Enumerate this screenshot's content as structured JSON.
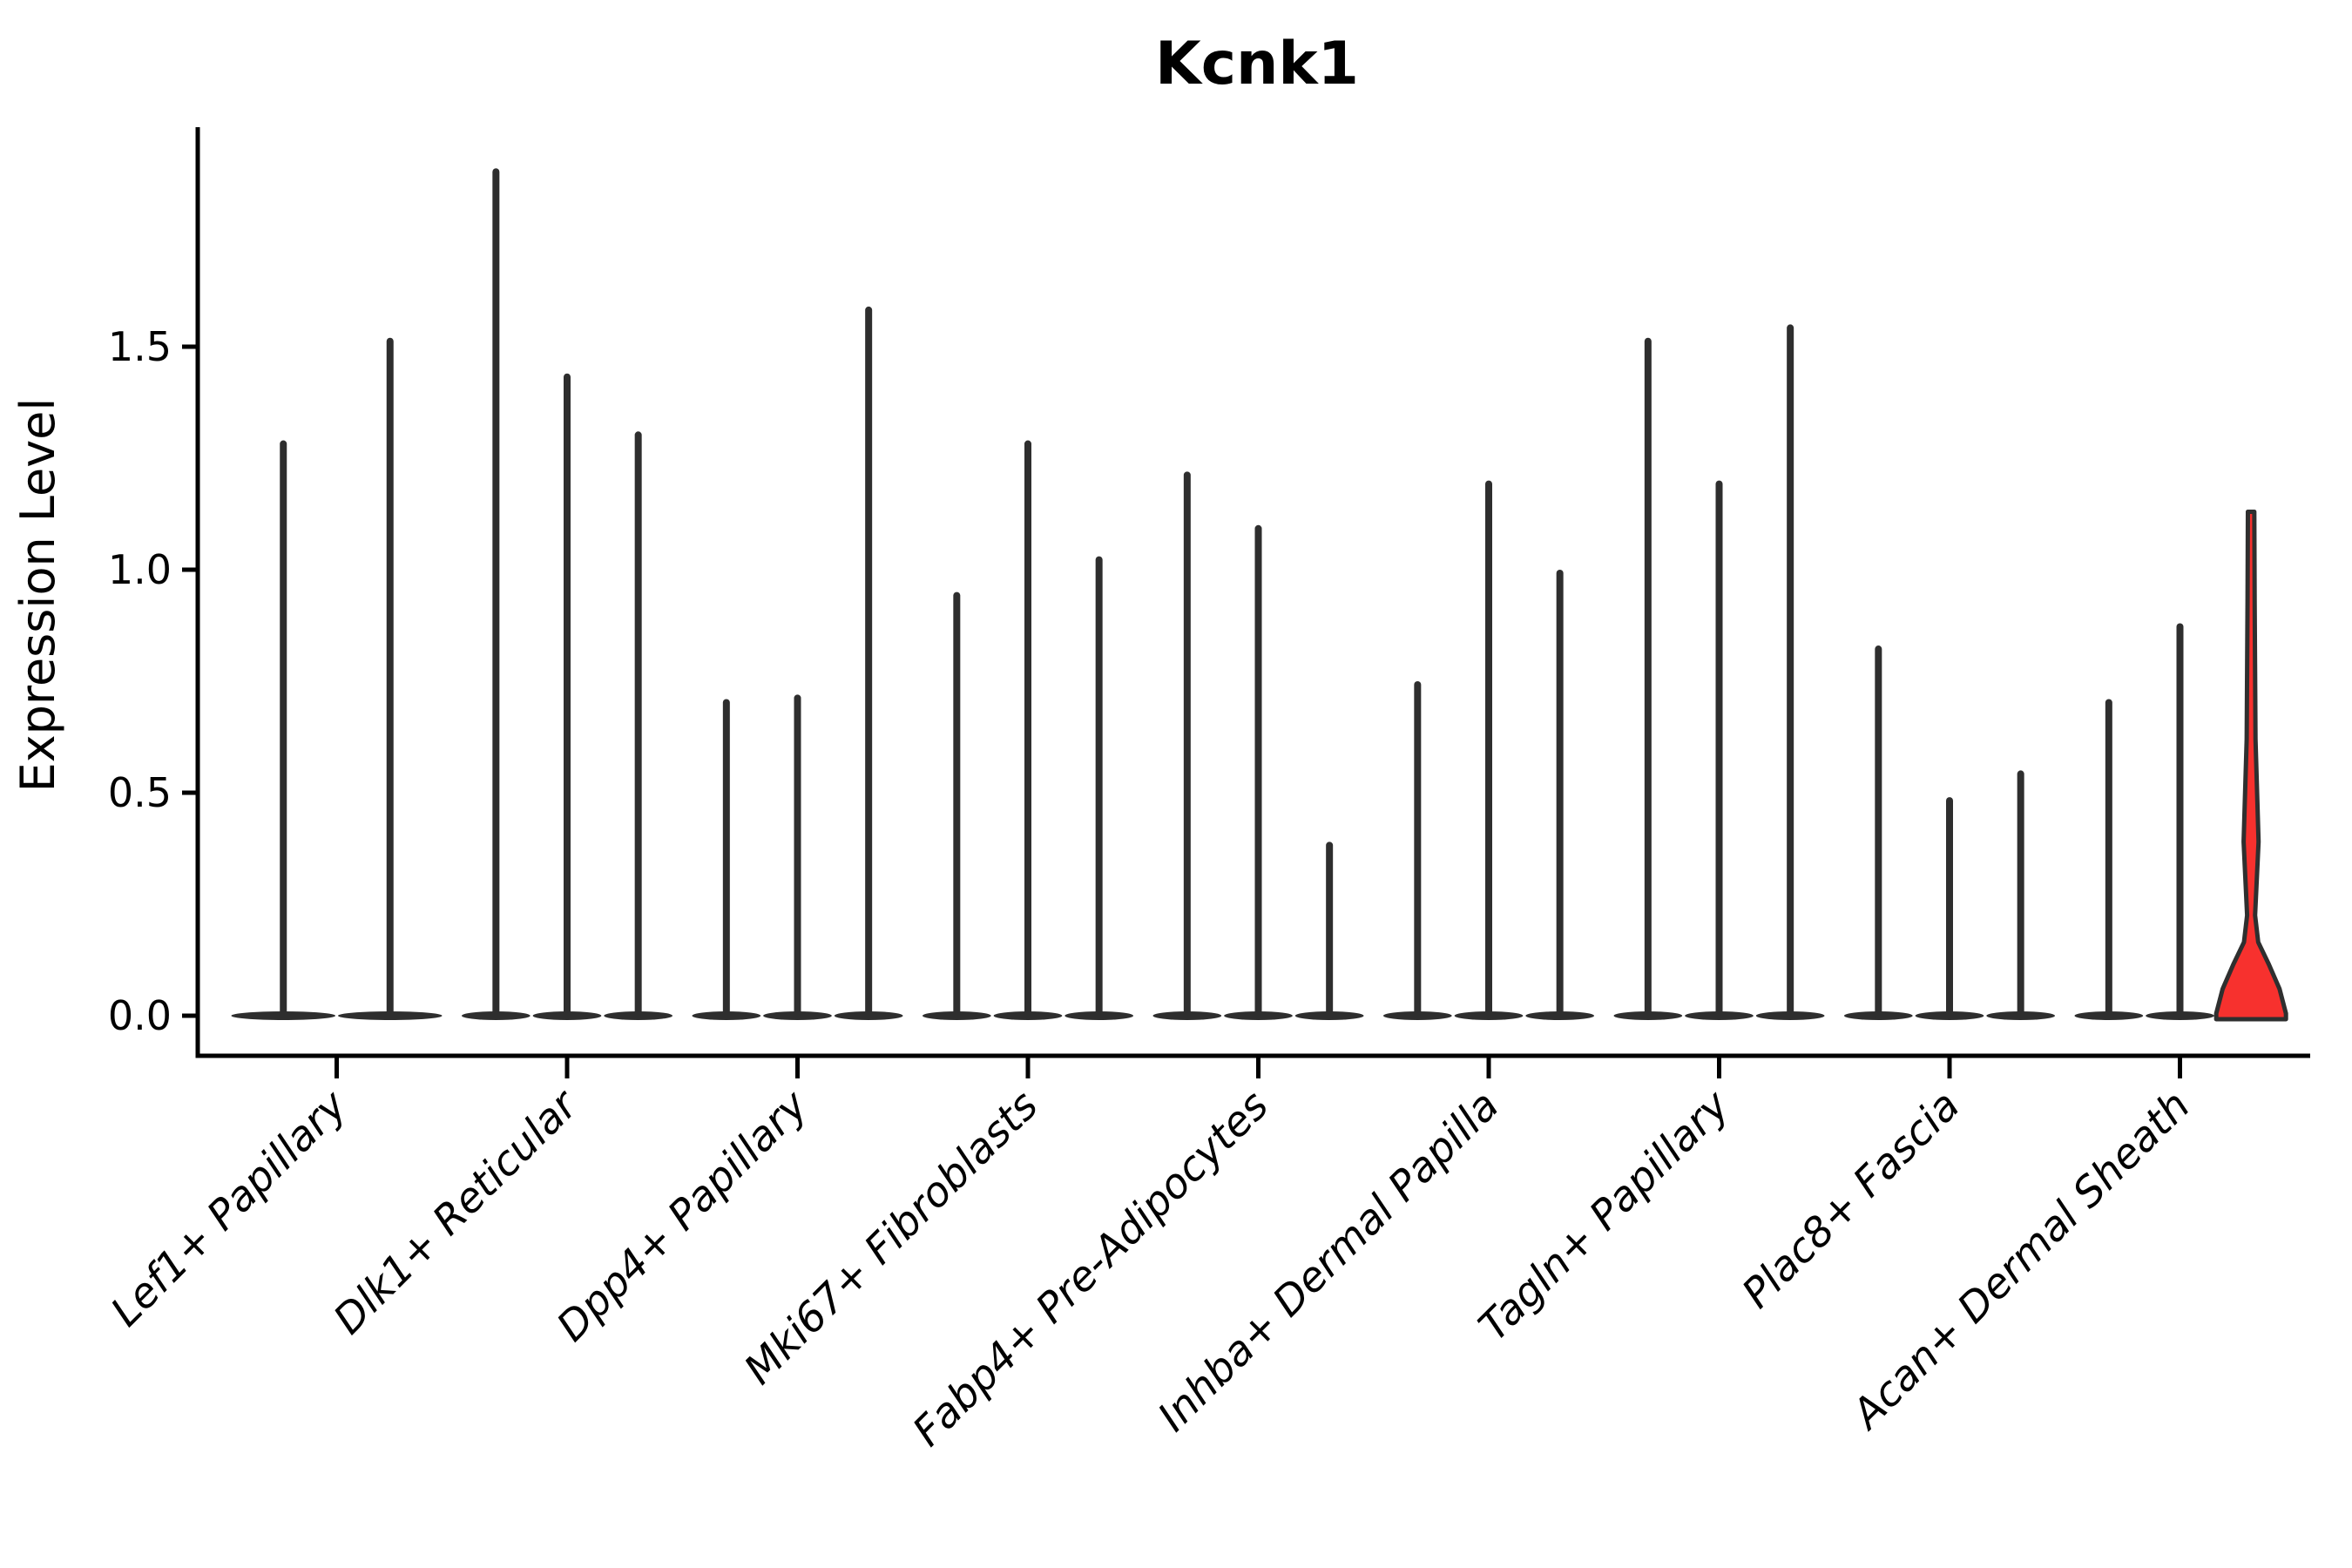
{
  "page": {
    "background": "#ffffff"
  },
  "title": {
    "text": "Kcnk1"
  },
  "chart_data": {
    "type": "violin",
    "title": "Kcnk1",
    "xlabel": "",
    "ylabel": "Expression Level",
    "ytick_labels": [
      "0.0",
      "0.5",
      "1.0",
      "1.5"
    ],
    "ytick_values": [
      0,
      0.5,
      1.0,
      1.5
    ],
    "ylim": [
      0,
      2.08
    ],
    "grid": false,
    "legend": "none",
    "categories": [
      "Lef1+ Papillary",
      "Dlk1+ Reticular",
      "Dpp4+ Papillary",
      "Mki67+ Fibroblasts",
      "Fabp4+ Pre-Adipocytes",
      "Inhba+ Dermal Papilla",
      "Tagln+ Papillary",
      "Plac8+ Fascia",
      "Acan+ Dermal Sheath"
    ],
    "groups": [
      {
        "label": "Lef1+ Papillary",
        "violins": [
          {
            "max": 1.29
          },
          {
            "max": 1.52
          }
        ]
      },
      {
        "label": "Dlk1+ Reticular",
        "violins": [
          {
            "max": 1.9
          },
          {
            "max": 1.44
          },
          {
            "max": 1.31
          }
        ]
      },
      {
        "label": "Dpp4+ Papillary",
        "violins": [
          {
            "max": 0.71
          },
          {
            "max": 0.72
          },
          {
            "max": 1.59
          }
        ]
      },
      {
        "label": "Mki67+ Fibroblasts",
        "violins": [
          {
            "max": 0.95
          },
          {
            "max": 1.29
          },
          {
            "max": 1.03
          }
        ]
      },
      {
        "label": "Fabp4+ Pre-Adipocytes",
        "violins": [
          {
            "max": 1.22
          },
          {
            "max": 1.1
          },
          {
            "max": 0.39
          }
        ]
      },
      {
        "label": "Inhba+ Dermal Papilla",
        "violins": [
          {
            "max": 0.75
          },
          {
            "max": 1.2
          },
          {
            "max": 1.0
          }
        ]
      },
      {
        "label": "Tagln+ Papillary",
        "violins": [
          {
            "max": 1.52
          },
          {
            "max": 1.2
          },
          {
            "max": 1.55
          }
        ]
      },
      {
        "label": "Plac8+ Fascia",
        "violins": [
          {
            "max": 0.83
          },
          {
            "max": 0.49
          },
          {
            "max": 0.55
          }
        ]
      },
      {
        "label": "Acan+ Dermal Sheath",
        "violins": [
          {
            "max": 0.71
          },
          {
            "max": 0.88
          },
          {
            "max": 1.13,
            "highlight": true,
            "fill": "#f7312e",
            "profile": [
              [
                1.13,
                0.045
              ],
              [
                0.93,
                0.05
              ],
              [
                0.62,
                0.062
              ],
              [
                0.39,
                0.105
              ],
              [
                0.225,
                0.056
              ],
              [
                0.165,
                0.1
              ],
              [
                0.115,
                0.25
              ],
              [
                0.06,
                0.4
              ],
              [
                0.005,
                0.49
              ]
            ]
          }
        ]
      }
    ],
    "colors": {
      "violin_stroke": "#2e2e2e",
      "highlight_fill": "#f7312e",
      "highlight_stroke": "#2f2f2f",
      "axis": "#000000",
      "text": "#000000"
    }
  }
}
